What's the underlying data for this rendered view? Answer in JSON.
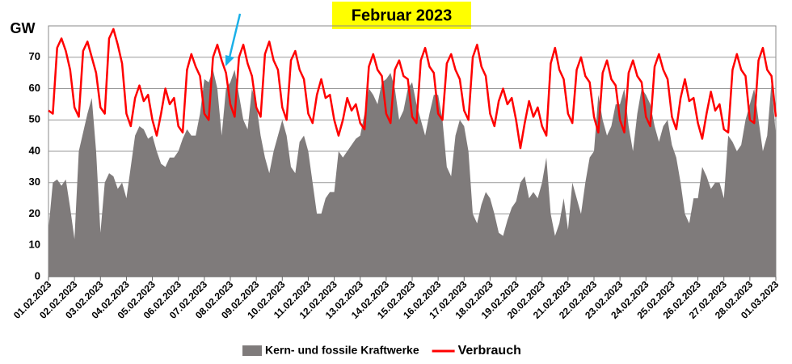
{
  "chart_data": {
    "type": "area-line",
    "title": "Februar 2023",
    "y_label": "GW",
    "categories": [
      "01.02.2023",
      null,
      null,
      null,
      null,
      null,
      "02.02.2023",
      null,
      null,
      null,
      null,
      null,
      "03.02.2023",
      null,
      null,
      null,
      null,
      null,
      "04.02.2023",
      null,
      null,
      null,
      null,
      null,
      "05.02.2023",
      null,
      null,
      null,
      null,
      null,
      "06.02.2023",
      null,
      null,
      null,
      null,
      null,
      "07.02.2023",
      null,
      null,
      null,
      null,
      null,
      "08.02.2023",
      null,
      null,
      null,
      null,
      null,
      "09.02.2023",
      null,
      null,
      null,
      null,
      null,
      "10.02.2023",
      null,
      null,
      null,
      null,
      null,
      "11.02.2023",
      null,
      null,
      null,
      null,
      null,
      "12.02.2023",
      null,
      null,
      null,
      null,
      null,
      "13.02.2023",
      null,
      null,
      null,
      null,
      null,
      "14.02.2023",
      null,
      null,
      null,
      null,
      null,
      "15.02.2023",
      null,
      null,
      null,
      null,
      null,
      "16.02.2023",
      null,
      null,
      null,
      null,
      null,
      "17.02.2023",
      null,
      null,
      null,
      null,
      null,
      "18.02.2023",
      null,
      null,
      null,
      null,
      null,
      "19.02.2023",
      null,
      null,
      null,
      null,
      null,
      "20.02.2023",
      null,
      null,
      null,
      null,
      null,
      "21.02.2023",
      null,
      null,
      null,
      null,
      null,
      "22.02.2023",
      null,
      null,
      null,
      null,
      null,
      "23.02.2023",
      null,
      null,
      null,
      null,
      null,
      "24.02.2023",
      null,
      null,
      null,
      null,
      null,
      "25.02.2023",
      null,
      null,
      null,
      null,
      null,
      "26.02.2023",
      null,
      null,
      null,
      null,
      null,
      "27.02.2023",
      null,
      null,
      null,
      null,
      null,
      "28.02.2023",
      null,
      null,
      null,
      null,
      null,
      "01.03.2023"
    ],
    "series": [
      {
        "name": "Kern- und fossile Kraftwerke",
        "kind": "area",
        "color": "#7f7b7b",
        "values": [
          15,
          30,
          31,
          29,
          31,
          22,
          12,
          40,
          46,
          52,
          57,
          40,
          14,
          30,
          33,
          32,
          28,
          30,
          25,
          35,
          45,
          48,
          47,
          44,
          45,
          40,
          36,
          35,
          38,
          38,
          40,
          44,
          47,
          45,
          45,
          52,
          63,
          62,
          66,
          60,
          45,
          60,
          62,
          66,
          58,
          50,
          47,
          60,
          55,
          45,
          38,
          33,
          40,
          45,
          50,
          45,
          35,
          33,
          43,
          45,
          40,
          30,
          20,
          20,
          25,
          27,
          27,
          40,
          38,
          40,
          42,
          44,
          45,
          52,
          60,
          58,
          55,
          62,
          63,
          65,
          60,
          50,
          53,
          60,
          62,
          55,
          50,
          45,
          52,
          58,
          58,
          50,
          35,
          32,
          45,
          50,
          48,
          40,
          20,
          17,
          23,
          27,
          25,
          20,
          14,
          13,
          18,
          22,
          24,
          30,
          32,
          25,
          27,
          25,
          30,
          38,
          20,
          13,
          17,
          25,
          15,
          30,
          25,
          20,
          30,
          38,
          40,
          58,
          50,
          45,
          48,
          55,
          55,
          60,
          48,
          40,
          52,
          60,
          58,
          55,
          48,
          43,
          48,
          50,
          42,
          38,
          30,
          20,
          17,
          25,
          25,
          35,
          32,
          28,
          30,
          30,
          25,
          45,
          43,
          40,
          42,
          50,
          55,
          60,
          50,
          40,
          45,
          62,
          45
        ]
      },
      {
        "name": "Verbrauch",
        "kind": "line",
        "color": "#ff0000",
        "values": [
          53,
          52,
          73,
          76,
          72,
          66,
          54,
          51,
          72,
          75,
          70,
          65,
          54,
          52,
          76,
          79,
          74,
          68,
          52,
          48,
          57,
          61,
          56,
          58,
          50,
          45,
          52,
          60,
          55,
          57,
          48,
          46,
          66,
          71,
          67,
          64,
          52,
          50,
          70,
          74,
          69,
          65,
          55,
          51,
          70,
          74,
          68,
          64,
          54,
          51,
          71,
          75,
          69,
          66,
          54,
          50,
          69,
          72,
          66,
          63,
          52,
          49,
          58,
          63,
          57,
          58,
          50,
          45,
          50,
          57,
          53,
          55,
          49,
          47,
          67,
          71,
          66,
          64,
          52,
          49,
          66,
          69,
          64,
          63,
          51,
          49,
          69,
          73,
          67,
          65,
          52,
          50,
          68,
          71,
          66,
          63,
          53,
          50,
          70,
          74,
          67,
          64,
          52,
          48,
          56,
          60,
          55,
          57,
          50,
          41,
          49,
          56,
          51,
          54,
          48,
          45,
          68,
          73,
          66,
          63,
          52,
          49,
          66,
          70,
          64,
          62,
          51,
          46,
          65,
          69,
          63,
          61,
          50,
          46,
          65,
          69,
          64,
          62,
          51,
          48,
          67,
          71,
          66,
          63,
          51,
          47,
          57,
          63,
          56,
          57,
          49,
          44,
          52,
          59,
          53,
          55,
          47,
          46,
          66,
          71,
          66,
          64,
          50,
          49,
          69,
          73,
          66,
          64,
          51
        ]
      }
    ],
    "ylim": [
      0,
      80
    ],
    "yticks": [
      0,
      10,
      20,
      30,
      40,
      50,
      60,
      70
    ],
    "grid": true,
    "legend": "bottom"
  }
}
